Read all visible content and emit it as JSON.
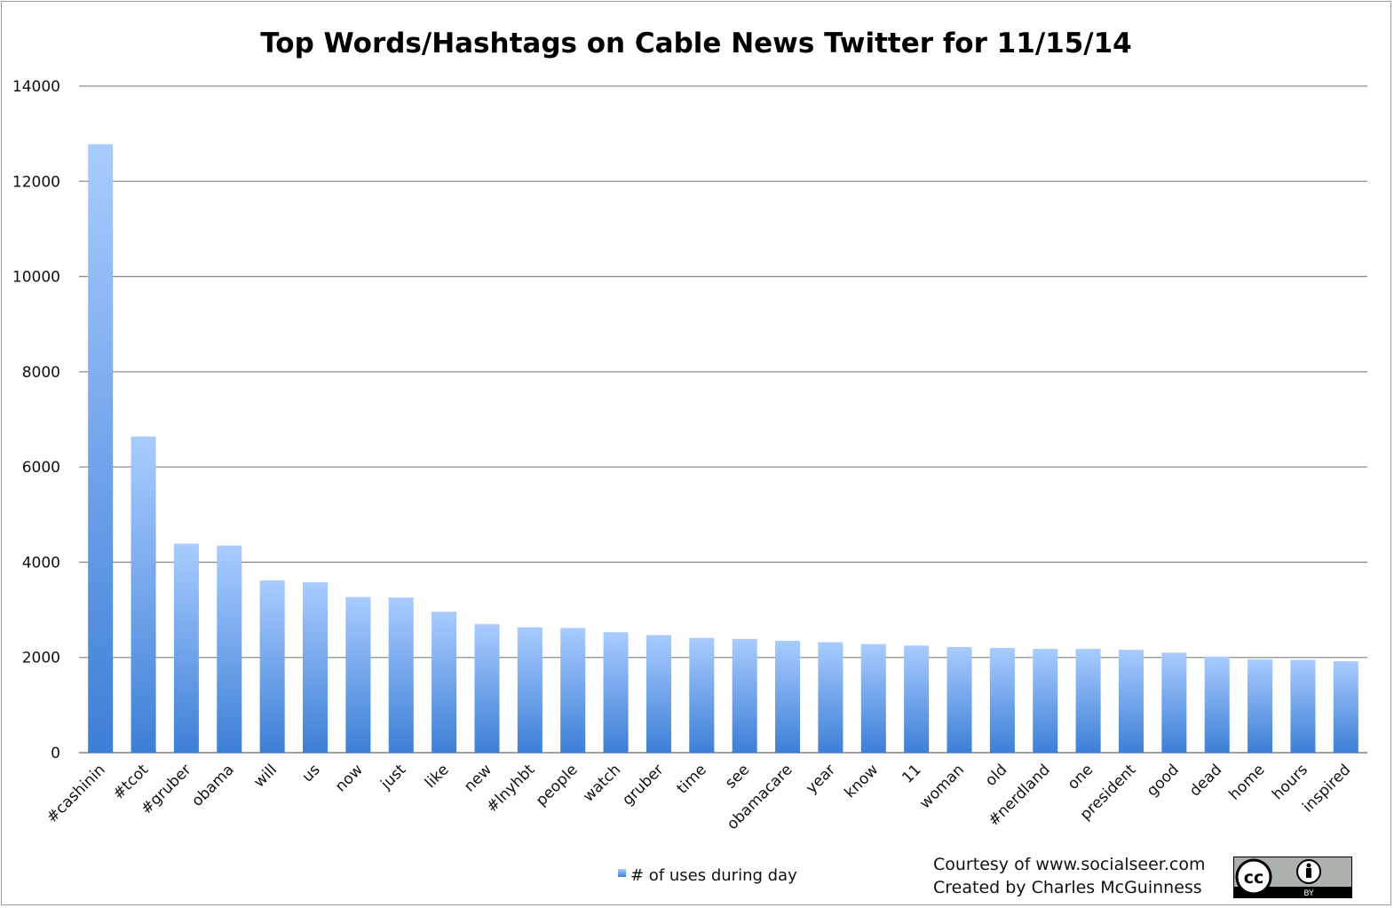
{
  "chart_data": {
    "type": "bar",
    "title": "Top Words/Hashtags on Cable News Twitter for 11/15/14",
    "xlabel": "",
    "ylabel": "",
    "ylim": [
      0,
      14000
    ],
    "yticks": [
      "0",
      "2000",
      "4000",
      "6000",
      "8000",
      "10000",
      "12000",
      "14000"
    ],
    "grid": true,
    "legend_position": "bottom",
    "bar_color_top": "#a9ccff",
    "bar_color_bottom": "#3d7fd6",
    "categories": [
      "#cashinin",
      "#tcot",
      "#gruber",
      "obama",
      "will",
      "us",
      "now",
      "just",
      "like",
      "new",
      "#lnyhbt",
      "people",
      "watch",
      "gruber",
      "time",
      "see",
      "obamacare",
      "year",
      "know",
      "11",
      "woman",
      "old",
      "#nerdland",
      "one",
      "president",
      "good",
      "dead",
      "home",
      "hours",
      "inspired"
    ],
    "series": [
      {
        "name": "# of uses during day",
        "values": [
          12780,
          6640,
          4390,
          4350,
          3620,
          3580,
          3270,
          3260,
          2960,
          2700,
          2630,
          2620,
          2530,
          2470,
          2410,
          2390,
          2350,
          2320,
          2280,
          2250,
          2220,
          2200,
          2180,
          2180,
          2160,
          2100,
          2020,
          1960,
          1950,
          1920
        ]
      }
    ]
  },
  "credits": {
    "line1": "Courtesy of www.socialseer.com",
    "line2": "Created by Charles McGuinness"
  },
  "badge": {
    "icon": "creative-commons-by-icon",
    "cc_text": "cc",
    "by_text": "BY"
  }
}
